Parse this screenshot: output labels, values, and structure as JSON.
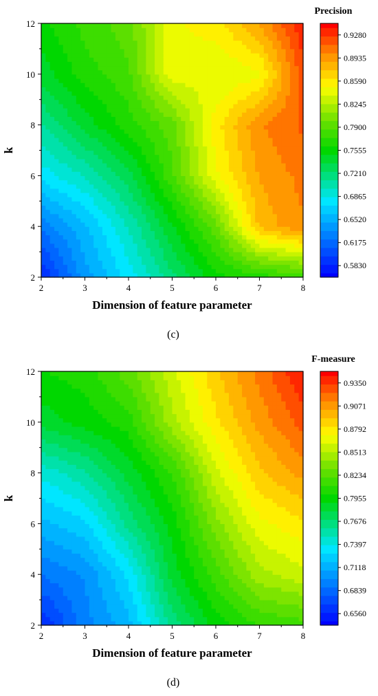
{
  "chart_data": [
    {
      "type": "heatmap",
      "panel_label": "(c)",
      "colorbar_title": "Precision",
      "xlabel": "Dimension of feature parameter",
      "ylabel": "k",
      "xlim": [
        2,
        8
      ],
      "ylim": [
        2,
        12
      ],
      "x_ticks": [
        "2",
        "3",
        "4",
        "5",
        "6",
        "7",
        "8"
      ],
      "y_ticks": [
        "2",
        "4",
        "6",
        "8",
        "10",
        "12"
      ],
      "colorbar_ticks": [
        "0.9280",
        "0.8935",
        "0.8590",
        "0.8245",
        "0.7900",
        "0.7555",
        "0.7210",
        "0.6865",
        "0.6520",
        "0.6175",
        "0.5830"
      ],
      "zlim": [
        0.583,
        0.943
      ],
      "x": [
        2,
        3,
        4,
        5,
        6,
        7,
        8
      ],
      "y": [
        2,
        4,
        6,
        8,
        10,
        12
      ],
      "z": [
        [
          0.6,
          0.655,
          0.69,
          0.73,
          0.765,
          0.775,
          0.785
        ],
        [
          0.64,
          0.67,
          0.71,
          0.755,
          0.8,
          0.88,
          0.9
        ],
        [
          0.69,
          0.71,
          0.74,
          0.79,
          0.85,
          0.89,
          0.905
        ],
        [
          0.72,
          0.75,
          0.775,
          0.8,
          0.86,
          0.9,
          0.915
        ],
        [
          0.75,
          0.775,
          0.79,
          0.85,
          0.84,
          0.85,
          0.92
        ],
        [
          0.765,
          0.785,
          0.8,
          0.85,
          0.86,
          0.89,
          0.935
        ]
      ]
    },
    {
      "type": "heatmap",
      "panel_label": "(d)",
      "colorbar_title": "F-measure",
      "xlabel": "Dimension of feature parameter",
      "ylabel": "k",
      "xlim": [
        2,
        8
      ],
      "ylim": [
        2,
        12
      ],
      "x_ticks": [
        "2",
        "3",
        "4",
        "5",
        "6",
        "7",
        "8"
      ],
      "y_ticks": [
        "2",
        "4",
        "6",
        "8",
        "10",
        "12"
      ],
      "colorbar_ticks": [
        "0.9350",
        "0.9071",
        "0.8792",
        "0.8513",
        "0.8234",
        "0.7955",
        "0.7676",
        "0.7397",
        "0.7118",
        "0.6839",
        "0.6560"
      ],
      "zlim": [
        0.656,
        0.945
      ],
      "x": [
        2,
        3,
        4,
        5,
        6,
        7,
        8
      ],
      "y": [
        2,
        4,
        6,
        8,
        10,
        12
      ],
      "z": [
        [
          0.67,
          0.705,
          0.725,
          0.77,
          0.8,
          0.815,
          0.82
        ],
        [
          0.7,
          0.71,
          0.74,
          0.79,
          0.82,
          0.85,
          0.86
        ],
        [
          0.725,
          0.735,
          0.77,
          0.8,
          0.84,
          0.87,
          0.88
        ],
        [
          0.75,
          0.765,
          0.79,
          0.815,
          0.86,
          0.89,
          0.905
        ],
        [
          0.79,
          0.8,
          0.81,
          0.85,
          0.88,
          0.905,
          0.925
        ],
        [
          0.805,
          0.81,
          0.83,
          0.86,
          0.89,
          0.915,
          0.94
        ]
      ]
    }
  ]
}
